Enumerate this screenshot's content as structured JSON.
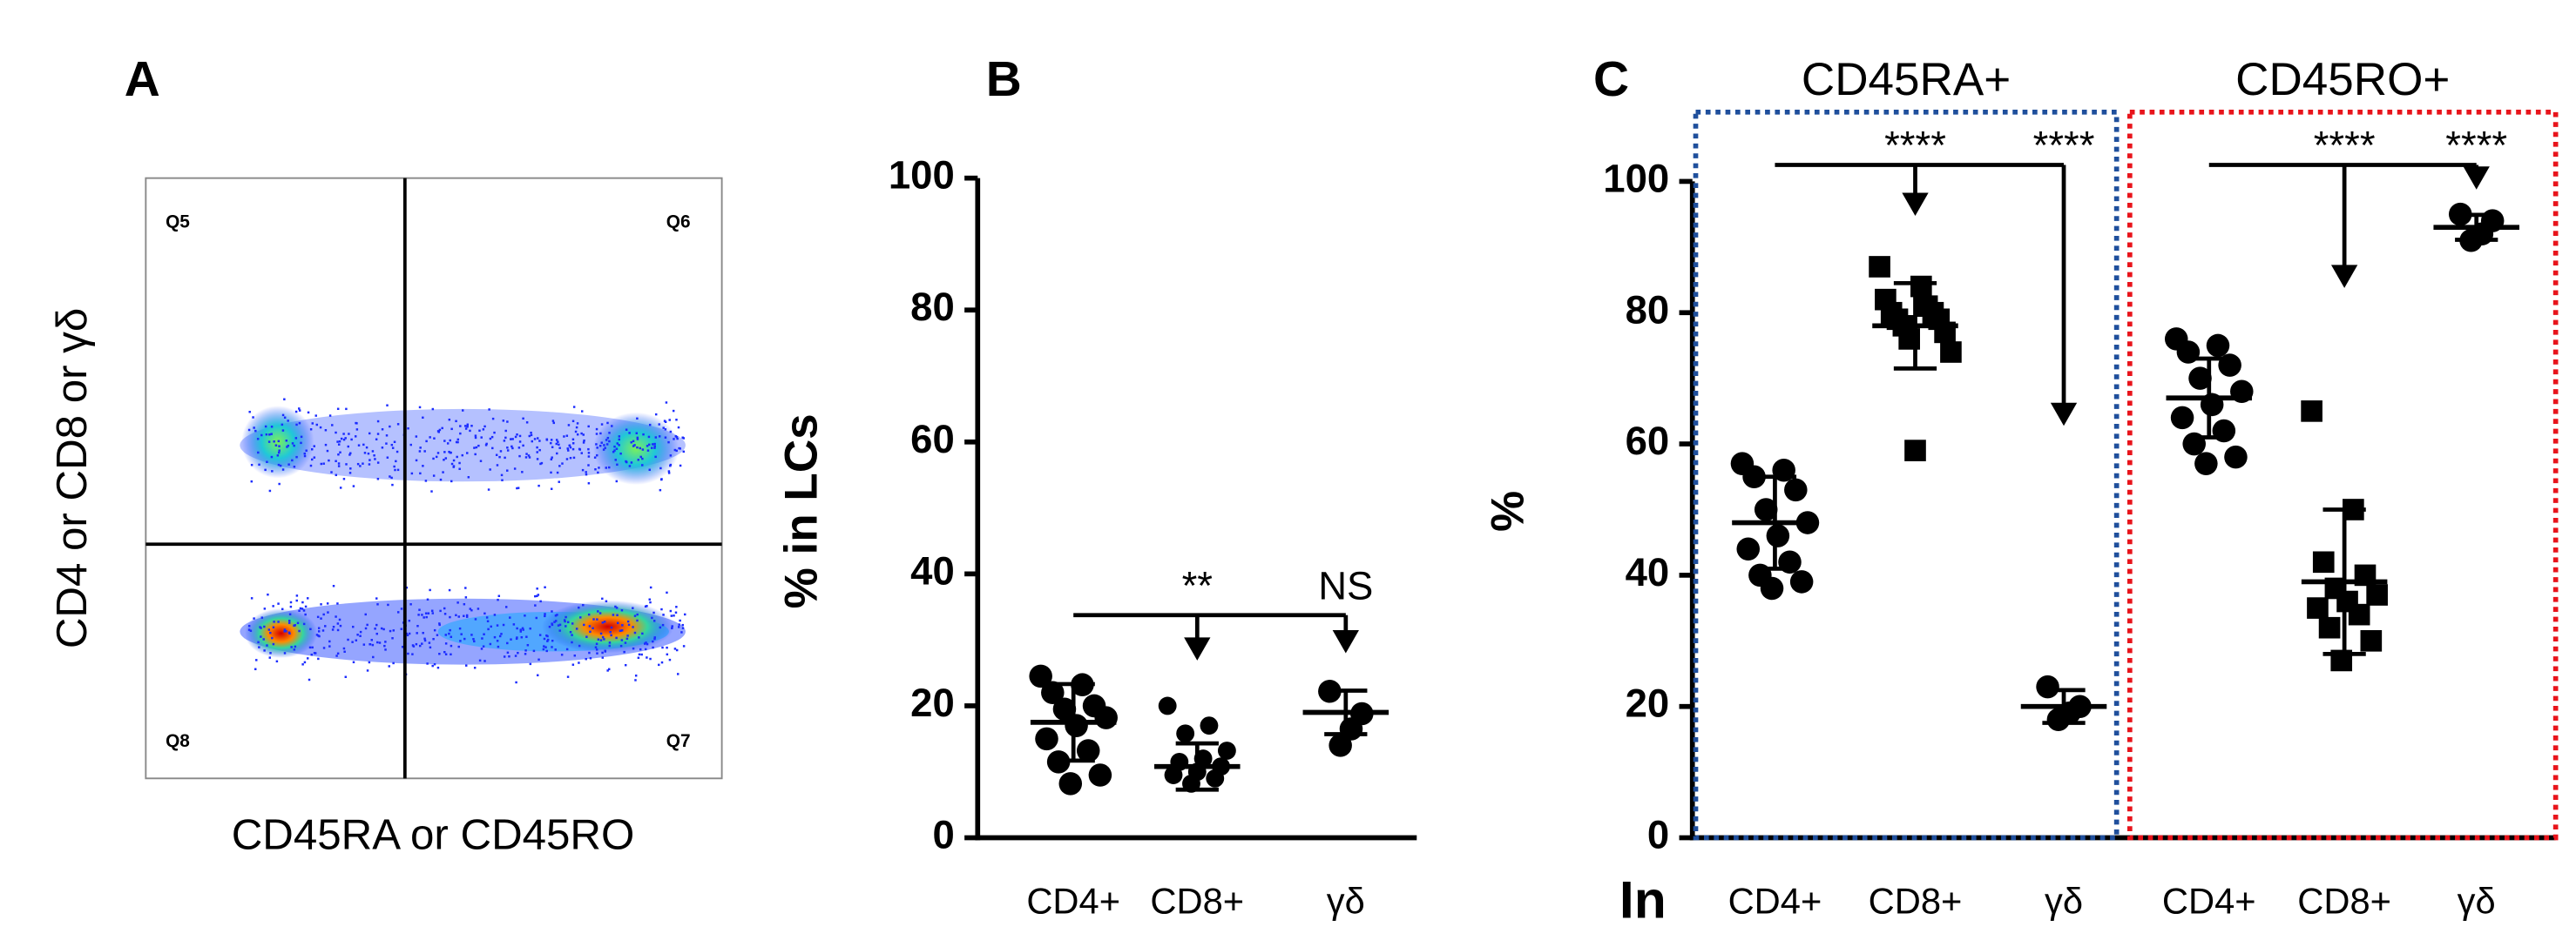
{
  "chart_data": [
    {
      "type": "flow",
      "panel": "A",
      "xlabel": "CD45RA or CD45RO",
      "ylabel": "CD4 or CD8 or γδ",
      "quadrants": [
        "Q5",
        "Q6",
        "Q8",
        "Q7"
      ]
    },
    {
      "type": "dotplot",
      "panel": "B",
      "ylabel": "% in LCs",
      "ylim": [
        0,
        100
      ],
      "yticks": [
        0,
        20,
        40,
        60,
        80,
        100
      ],
      "groups": [
        {
          "categories": [
            "CD4+",
            "CD8+",
            "γδ"
          ],
          "points": [
            [
              24.5,
              23.2,
              22,
              20,
              19.5,
              18.2,
              17,
              15,
              13.2,
              11.5,
              9.5,
              8.2
            ],
            [
              20,
              17,
              15.8,
              13.2,
              12,
              11.5,
              10.8,
              10,
              9.5,
              9,
              8.2
            ],
            [
              22.2,
              18.8,
              16.5,
              14
            ]
          ],
          "mean": [
            17.5,
            10.8,
            19
          ],
          "sd": [
            5.8,
            3.5,
            3.3
          ],
          "markers": [
            "circle",
            "small-circle",
            "circle"
          ],
          "annotations": [
            "**",
            "NS"
          ]
        }
      ]
    },
    {
      "type": "dotplot",
      "panel": "C",
      "ylabel": "%",
      "xlabel": "In",
      "ylim": [
        0,
        100
      ],
      "yticks": [
        0,
        20,
        40,
        60,
        80,
        100
      ],
      "groups": [
        {
          "label": "CD45RA+",
          "color": "#1f4f9c",
          "categories": [
            "CD4+",
            "CD8+",
            "γδ"
          ],
          "points": [
            [
              57,
              56,
              55,
              53,
              50,
              48,
              46,
              44,
              42,
              40,
              39,
              38
            ],
            [
              87,
              84,
              82,
              81,
              80,
              80,
              79,
              79,
              78,
              77,
              76,
              74,
              59
            ],
            [
              23,
              20,
              19,
              18
            ]
          ],
          "mean": [
            48,
            78,
            20
          ],
          "sd": [
            7,
            6.5,
            2.5
          ],
          "markers": [
            "circle",
            "square",
            "circle"
          ],
          "annotations": [
            "****",
            "****"
          ]
        },
        {
          "label": "CD45RO+",
          "color": "#e8141b",
          "categories": [
            "CD4+",
            "CD8+",
            "γδ"
          ],
          "points": [
            [
              76,
              75,
              74,
              72,
              70,
              68,
              66,
              64,
              62,
              60,
              58,
              57
            ],
            [
              65,
              50,
              42,
              40,
              38,
              37,
              36,
              35,
              34,
              32,
              30,
              27
            ],
            [
              95,
              94,
              92,
              91
            ]
          ],
          "mean": [
            67,
            39,
            93
          ],
          "sd": [
            6,
            11,
            1.9
          ],
          "markers": [
            "circle",
            "square",
            "circle"
          ],
          "annotations": [
            "****",
            "****"
          ]
        }
      ]
    }
  ]
}
